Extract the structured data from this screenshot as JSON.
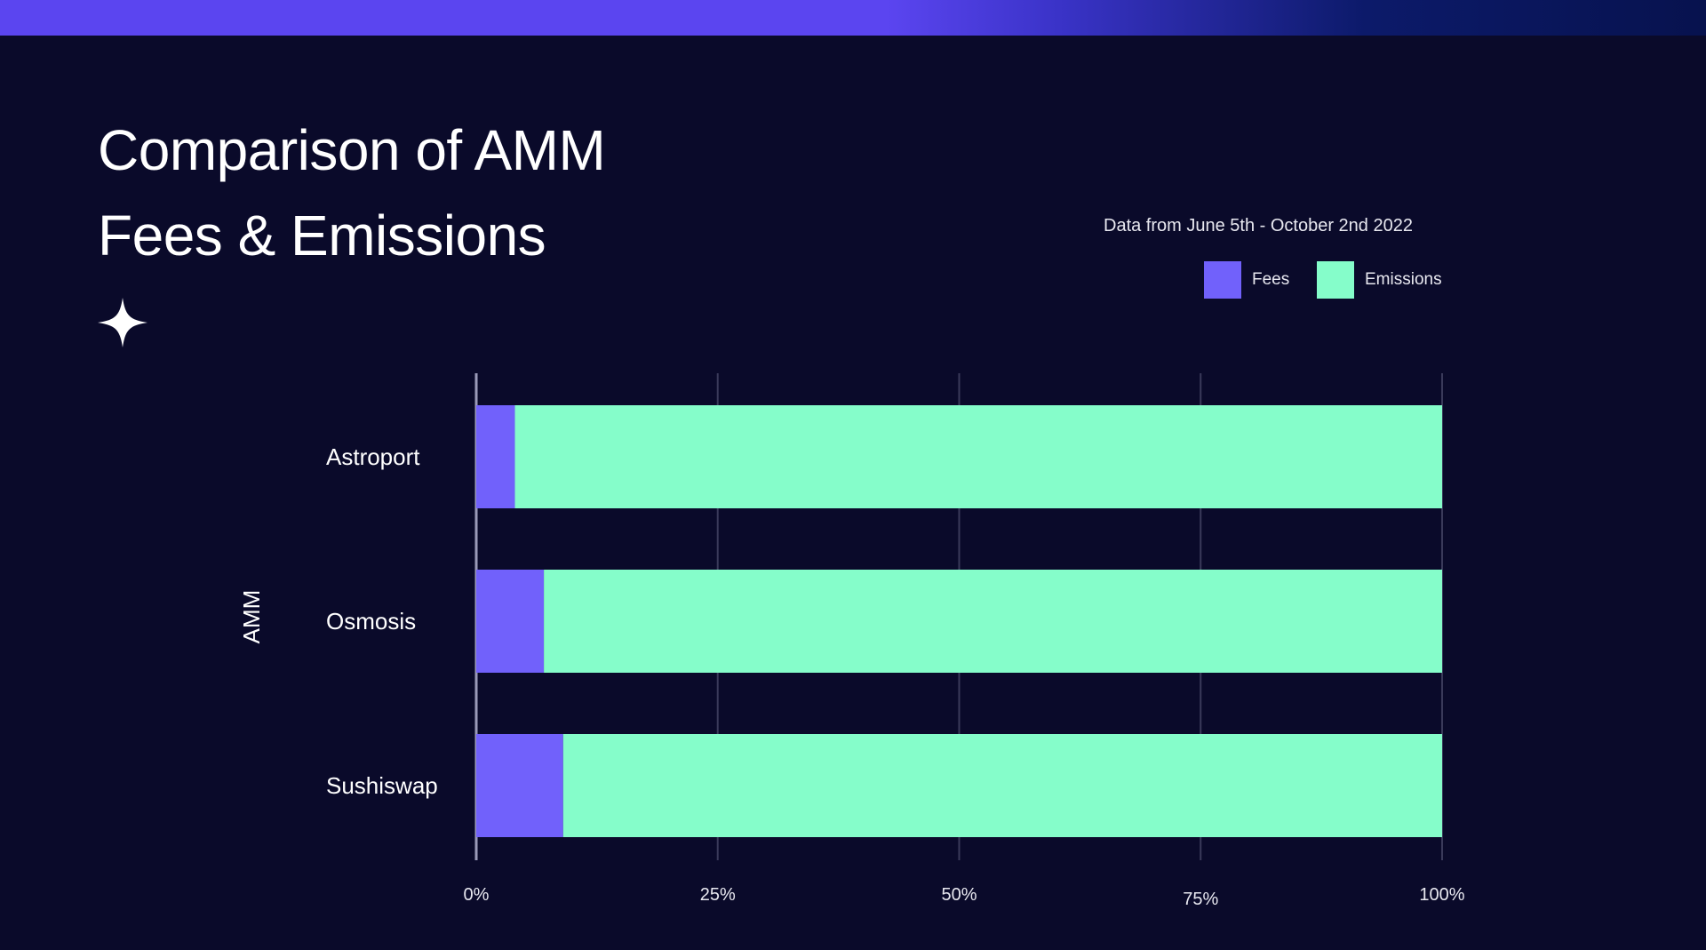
{
  "header": {
    "title_line1": "Comparison of AMM",
    "title_line2": "Fees & Emissions"
  },
  "colors": {
    "fees": "#7161fb",
    "emissions": "#85fdca",
    "background": "#0a0a2a"
  },
  "chart_data": {
    "type": "bar",
    "orientation": "horizontal",
    "stacked": true,
    "title": "Comparison of AMM Fees & Emissions",
    "subtitle": "Data from June 5th - October 2nd 2022",
    "ylabel": "AMM",
    "xlabel": "",
    "categories": [
      "Astroport",
      "Osmosis",
      "Sushiswap"
    ],
    "series": [
      {
        "name": "Fees",
        "values": [
          4,
          7,
          9
        ]
      },
      {
        "name": "Emissions",
        "values": [
          96,
          93,
          91
        ]
      }
    ],
    "xlim": [
      0,
      100
    ],
    "xticks": [
      "0%",
      "25%",
      "50%",
      "75%",
      "100%"
    ],
    "grid": true,
    "legend": "top-right"
  }
}
